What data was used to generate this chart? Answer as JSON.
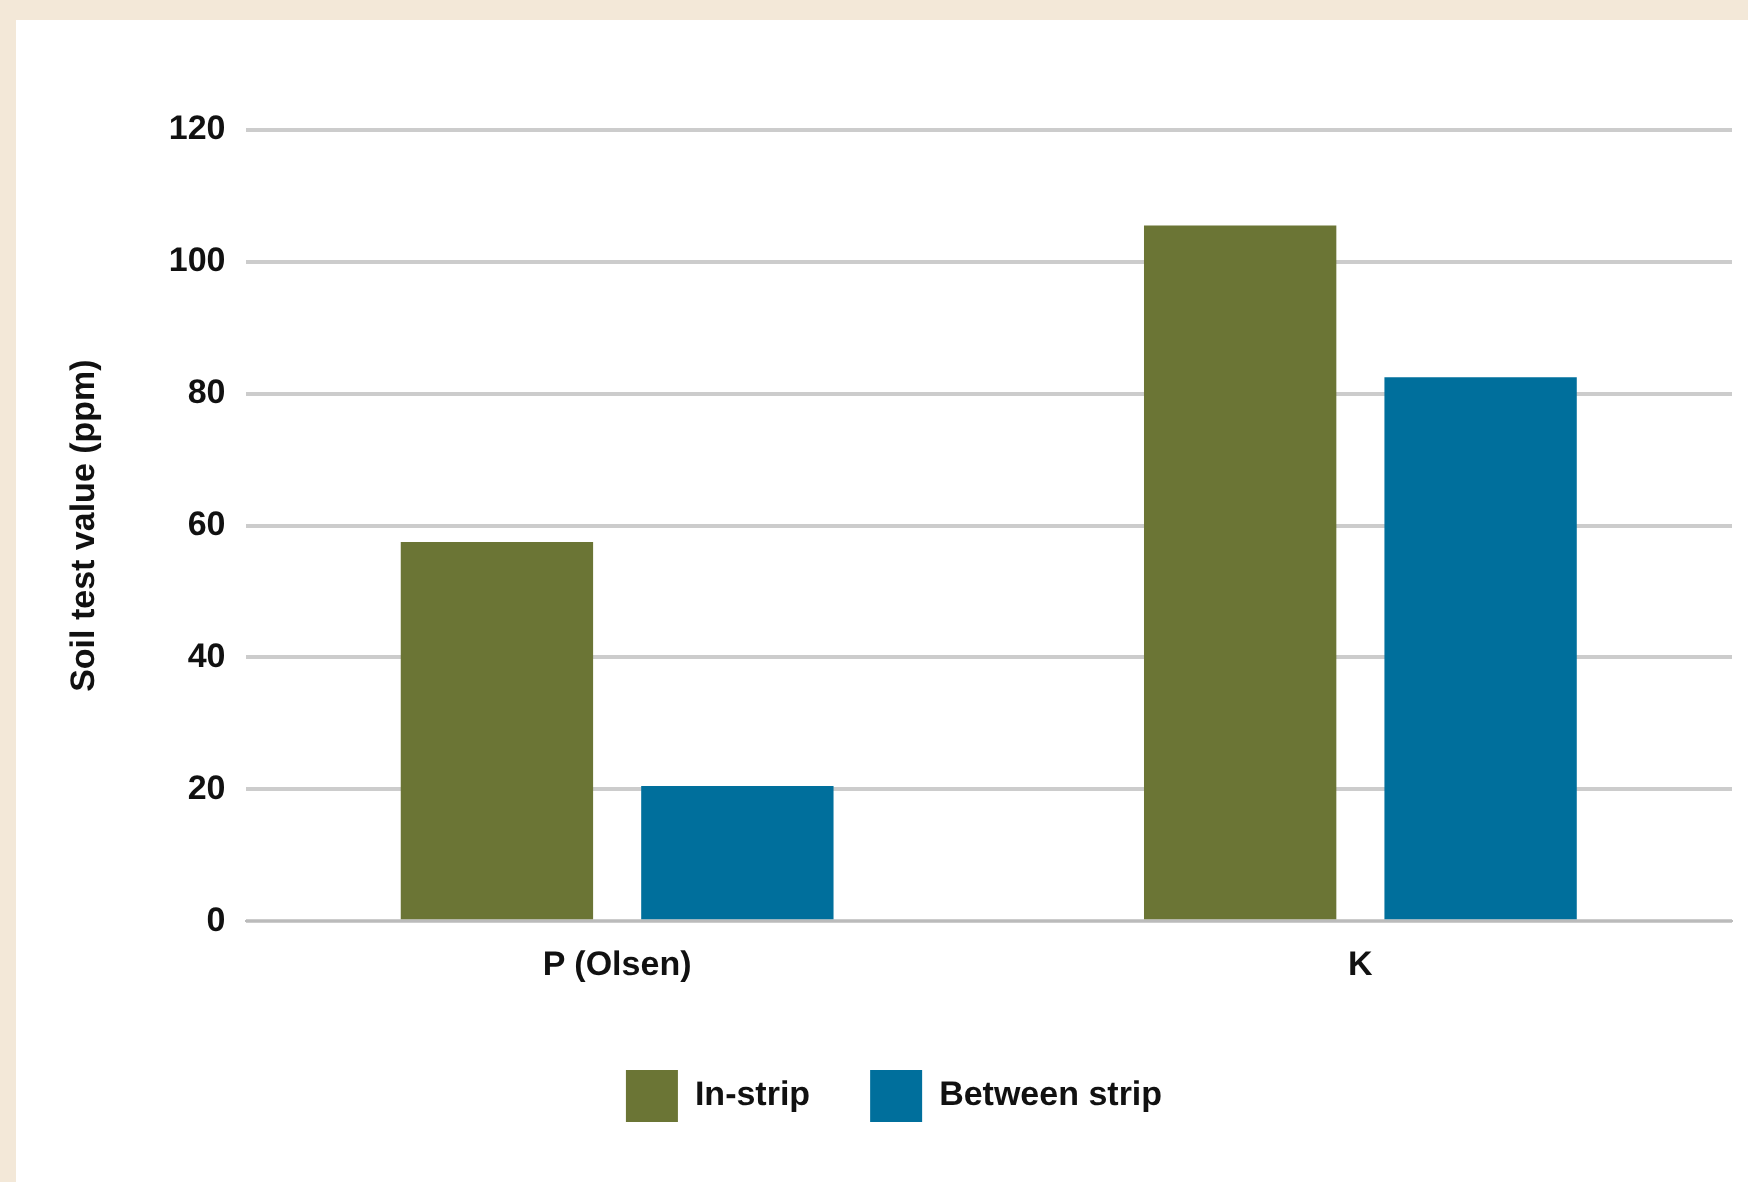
{
  "chart_data": {
    "type": "bar",
    "ylabel": "Soil test value (ppm)",
    "categories": [
      "P (Olsen)",
      "K"
    ],
    "series": [
      {
        "name": "In-strip",
        "color": "#6b7535",
        "values": [
          57.5,
          105.5
        ]
      },
      {
        "name": "Between strip",
        "color": "#006f9c",
        "values": [
          20.5,
          82.5
        ]
      }
    ],
    "ylim": [
      0,
      120
    ],
    "yticks": [
      0,
      20,
      40,
      60,
      80,
      100,
      120
    ],
    "grid": "y",
    "legend": "bottom"
  }
}
